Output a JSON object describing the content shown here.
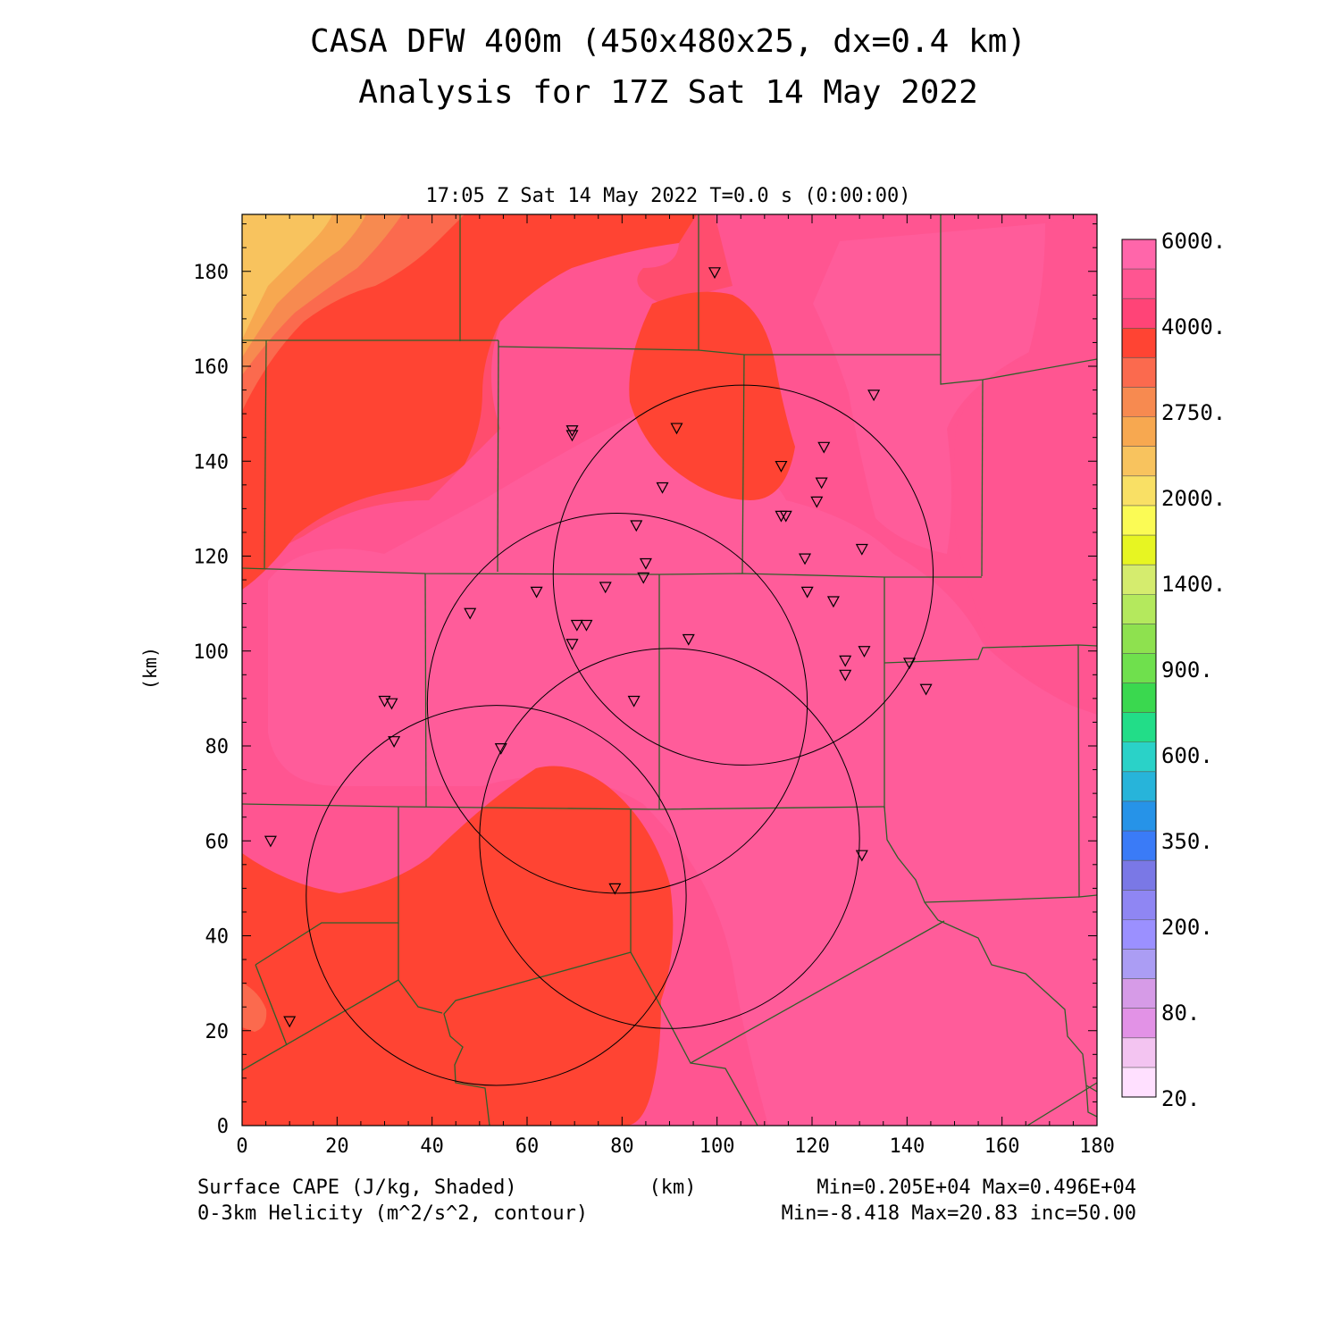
{
  "title_line1": "CASA DFW 400m (450x480x25, dx=0.4 km)",
  "title_line2": "Analysis for 17Z Sat 14 May 2022",
  "plot_time": "17:05 Z Sat 14 May 2022   T=0.0 s (0:00:00)",
  "axes": {
    "x_label": "(km)",
    "y_label": "(km)",
    "x_range": [
      0,
      180
    ],
    "y_range": [
      0,
      192
    ],
    "x_ticks": [
      "0",
      "20",
      "40",
      "60",
      "80",
      "100",
      "120",
      "140",
      "160",
      "180"
    ],
    "y_ticks": [
      "0",
      "20",
      "40",
      "60",
      "80",
      "100",
      "120",
      "140",
      "160",
      "180"
    ]
  },
  "colorbar": {
    "labels": [
      "6000.",
      "4000.",
      "2750.",
      "2000.",
      "1400.",
      "900.",
      "600.",
      "350.",
      "200.",
      "80.",
      "20."
    ],
    "colors": [
      "#ff66aa",
      "#ff5591",
      "#ff4477",
      "#ff4433",
      "#fb6a4e",
      "#f78a50",
      "#f7a850",
      "#f8c35e",
      "#f9e065",
      "#fbfb55",
      "#e7f522",
      "#d5ec6e",
      "#b4e95d",
      "#8ee14f",
      "#6fe04d",
      "#3ad84f",
      "#22dd88",
      "#2ad2c8",
      "#27b4da",
      "#2693e8",
      "#3a7bf7",
      "#7a78e6",
      "#8f86f3",
      "#9b90ff",
      "#ab9df4",
      "#d69be7",
      "#e292e6",
      "#f3c4f1",
      "#ffe0ff"
    ]
  },
  "footer": {
    "left_line1": "Surface CAPE (J/kg, Shaded)",
    "left_line2": "0-3km Helicity (m^2/s^2, contour)",
    "center": "(km)",
    "right_line1": "Min=0.205E+04 Max=0.496E+04",
    "right_line2": "Min=-8.418 Max=20.83 inc=50.00"
  },
  "field_colors": {
    "c2000": "#f8c35e",
    "c2400": "#f7a850",
    "c2750": "#f78a50",
    "c3000": "#fb6a4e",
    "c3300": "#ff4433",
    "c3700": "#ff4d6e",
    "c4000": "#ff5591",
    "c6000": "#ff5c9a"
  },
  "stations": [
    [
      99.5,
      179.8
    ],
    [
      133,
      154
    ],
    [
      91.5,
      147
    ],
    [
      69.5,
      146.5
    ],
    [
      69.5,
      145.5
    ],
    [
      122.5,
      143
    ],
    [
      113.5,
      139
    ],
    [
      122,
      135.5
    ],
    [
      88.5,
      134.5
    ],
    [
      121,
      131.5
    ],
    [
      113.5,
      128.5
    ],
    [
      114.5,
      128.5
    ],
    [
      83,
      126.5
    ],
    [
      130.5,
      121.5
    ],
    [
      118.5,
      119.5
    ],
    [
      85,
      118.5
    ],
    [
      84.5,
      115.5
    ],
    [
      76.5,
      113.5
    ],
    [
      62,
      112.5
    ],
    [
      119,
      112.5
    ],
    [
      124.5,
      110.5
    ],
    [
      48,
      108
    ],
    [
      70.5,
      105.5
    ],
    [
      72.5,
      105.5
    ],
    [
      94,
      102.5
    ],
    [
      69.5,
      101.5
    ],
    [
      131,
      100
    ],
    [
      127,
      98
    ],
    [
      140.5,
      97.5
    ],
    [
      127,
      95
    ],
    [
      144,
      92
    ],
    [
      82.5,
      89.5
    ],
    [
      30,
      89.5
    ],
    [
      31.5,
      89
    ],
    [
      32,
      81
    ],
    [
      54.5,
      79.5
    ],
    [
      6,
      60
    ],
    [
      130.5,
      57
    ],
    [
      78.5,
      50
    ],
    [
      10,
      22
    ]
  ],
  "helicity_circles": [
    {
      "cx": 105.5,
      "cy": 116,
      "r": 40
    },
    {
      "cx": 79,
      "cy": 89,
      "r": 40
    },
    {
      "cx": 90,
      "cy": 60.5,
      "r": 40
    },
    {
      "cx": 53.5,
      "cy": 48.5,
      "r": 40
    }
  ]
}
